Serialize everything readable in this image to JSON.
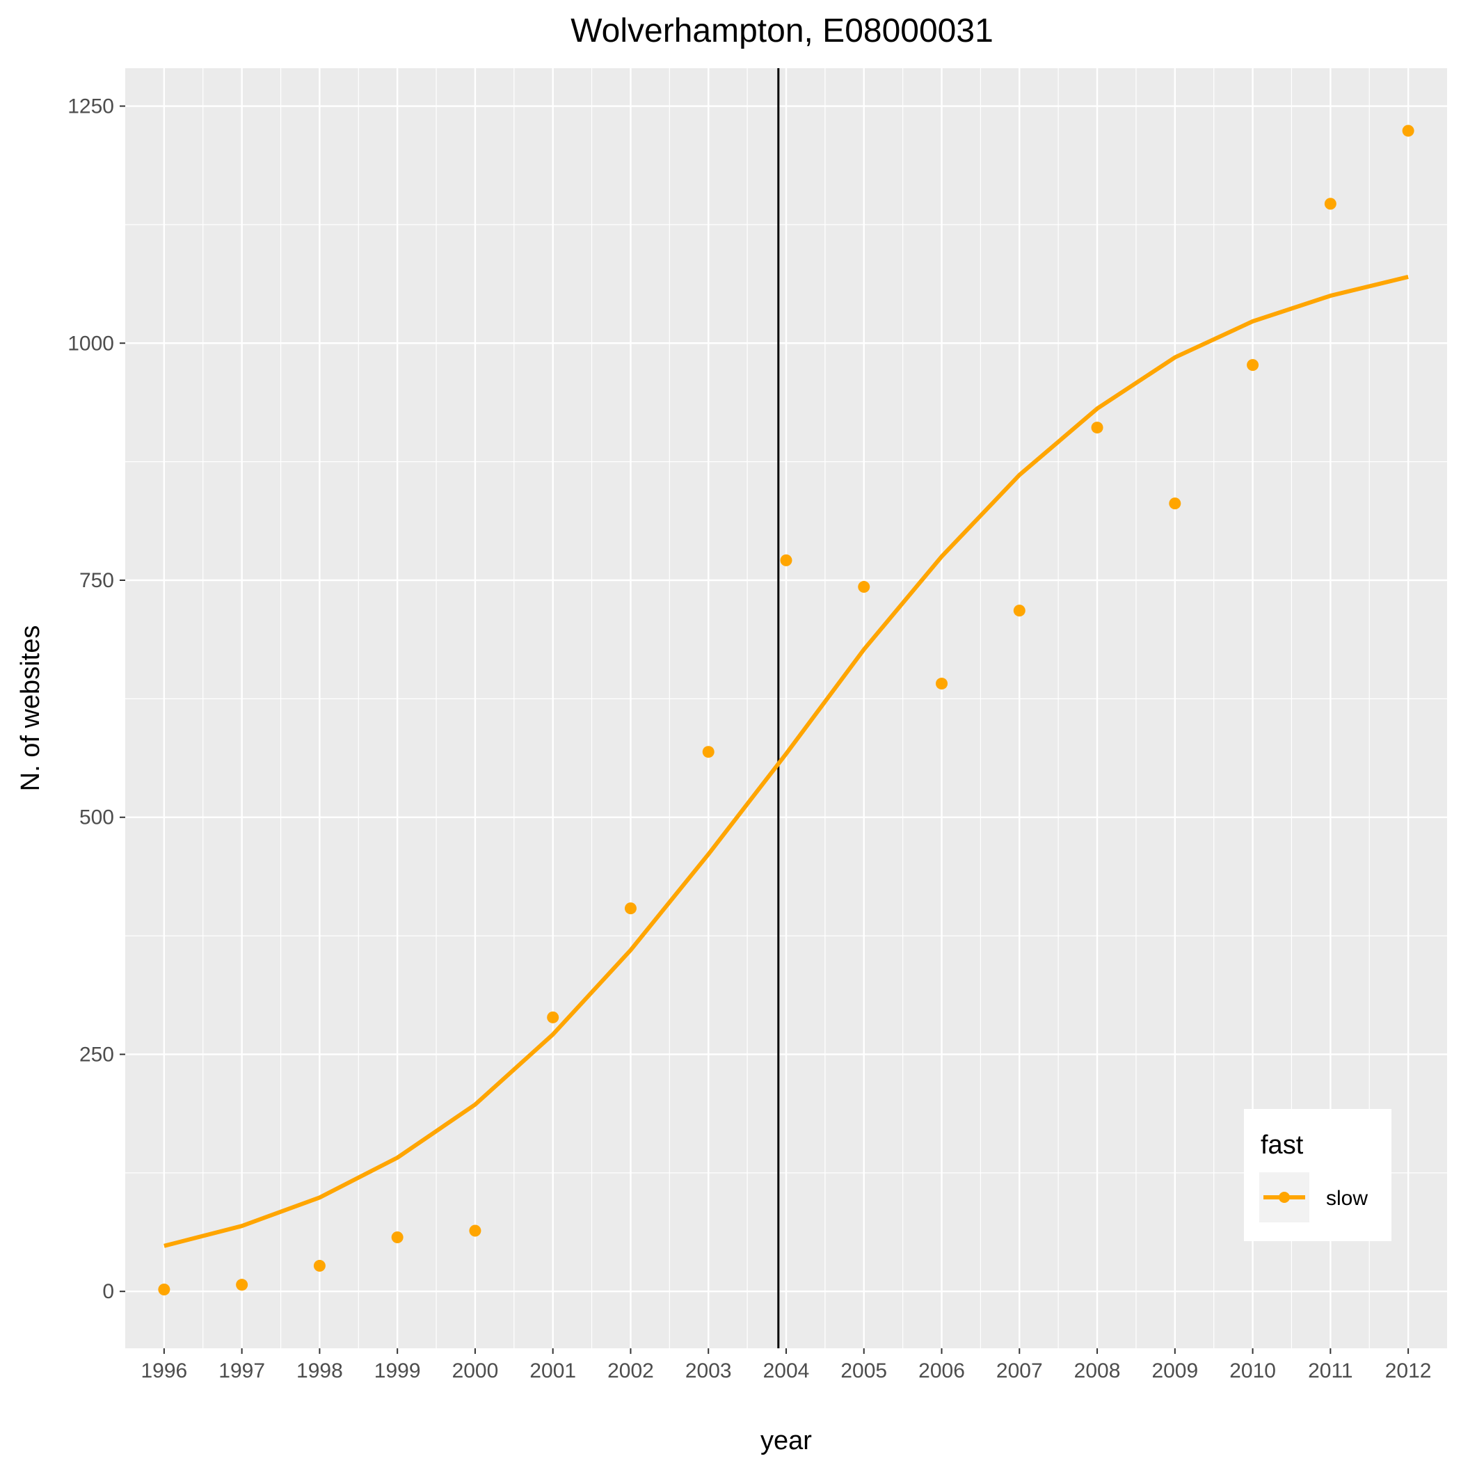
{
  "chart_data": {
    "type": "scatter",
    "title": "Wolverhampton, E08000031",
    "xlabel": "year",
    "ylabel": "N. of websites",
    "x": [
      1996,
      1997,
      1998,
      1999,
      2000,
      2001,
      2002,
      2003,
      2004,
      2005,
      2006,
      2007,
      2008,
      2009,
      2010,
      2011,
      2012
    ],
    "x_tick_labels": [
      "1996",
      "1997",
      "1998",
      "1999",
      "2000",
      "2001",
      "2002",
      "2003",
      "2004",
      "2005",
      "2006",
      "2007",
      "2008",
      "2009",
      "2010",
      "2011",
      "2012"
    ],
    "y_ticks": [
      0,
      250,
      500,
      750,
      1000,
      1250
    ],
    "y_tick_labels": [
      "0",
      "250",
      "500",
      "750",
      "1000",
      "1250"
    ],
    "xlim": [
      1995.5,
      2012.5
    ],
    "ylim": [
      -60,
      1290
    ],
    "series": [
      {
        "name": "slow",
        "kind": "points",
        "color": "#FFA500",
        "values": [
          2,
          7,
          27,
          57,
          64,
          289,
          404,
          569,
          771,
          743,
          641,
          718,
          911,
          831,
          977,
          1147,
          1224
        ]
      },
      {
        "name": "slow",
        "kind": "smooth-line",
        "color": "#FFA500",
        "values": [
          48,
          69,
          99,
          141,
          197,
          271,
          360,
          461,
          567,
          677,
          775,
          861,
          931,
          985,
          1023,
          1050,
          1070
        ]
      }
    ],
    "vline_x": 2003.9,
    "vline_color": "#000000",
    "legend": {
      "title": "fast",
      "items": [
        "slow"
      ],
      "position": "bottom-right"
    },
    "grid": true,
    "panel_background": "#EBEBEB",
    "grid_color": "#FFFFFF"
  }
}
